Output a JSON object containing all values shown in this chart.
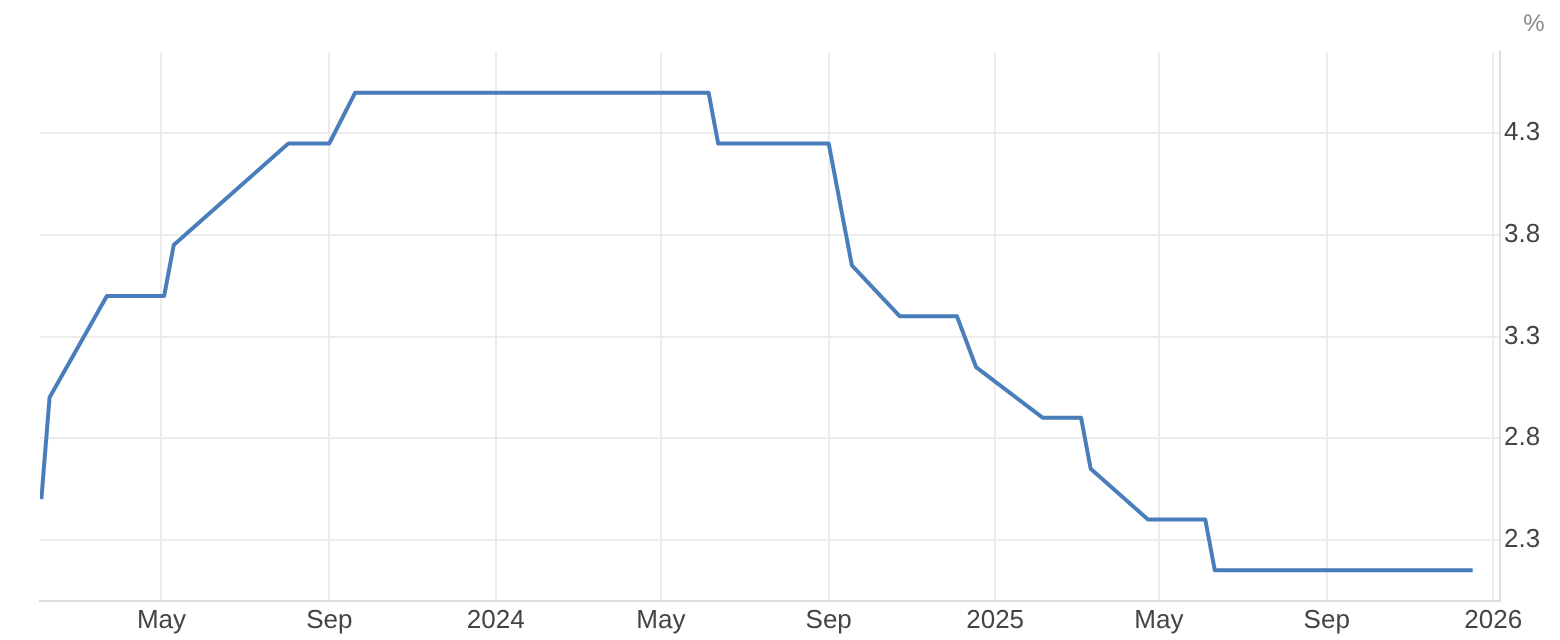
{
  "chart_data": {
    "type": "step",
    "ylabel": "%",
    "x": [
      "2023-02-02",
      "2023-02-08",
      "2023-03-22",
      "2023-05-03",
      "2023-05-10",
      "2023-06-21",
      "2023-08-02",
      "2023-09-01",
      "2023-09-20",
      "2024-06-05",
      "2024-06-12",
      "2024-09-01",
      "2024-09-18",
      "2024-10-23",
      "2024-12-04",
      "2024-12-18",
      "2025-02-05",
      "2025-03-05",
      "2025-03-12",
      "2025-04-23",
      "2025-06-04",
      "2025-06-11",
      "2025-12-17"
    ],
    "series": [
      {
        "color": "#4a7ebb",
        "values": [
          2.5,
          3.0,
          3.5,
          3.5,
          3.75,
          4.0,
          4.25,
          4.25,
          4.5,
          4.5,
          4.25,
          4.25,
          3.65,
          3.4,
          3.4,
          3.15,
          2.9,
          2.9,
          2.65,
          2.4,
          2.4,
          2.15,
          2.15
        ]
      }
    ],
    "xlim": [
      "2023-02-01",
      "2026-01-06"
    ],
    "xticks": [
      {
        "value": "2023-05-01",
        "label": "May"
      },
      {
        "value": "2023-09-01",
        "label": "Sep"
      },
      {
        "value": "2024-01-01",
        "label": "2024"
      },
      {
        "value": "2024-05-01",
        "label": "May"
      },
      {
        "value": "2024-09-01",
        "label": "Sep"
      },
      {
        "value": "2025-01-01",
        "label": "2025"
      },
      {
        "value": "2025-05-01",
        "label": "May"
      },
      {
        "value": "2025-09-01",
        "label": "Sep"
      },
      {
        "value": "2026-01-01",
        "label": "2026"
      }
    ],
    "ylim": [
      2.0,
      4.7
    ],
    "yticks": [
      2.3,
      2.8,
      3.3,
      3.8,
      4.3
    ],
    "grid": true,
    "legend": false,
    "line_style": "solid",
    "marker": "none"
  }
}
